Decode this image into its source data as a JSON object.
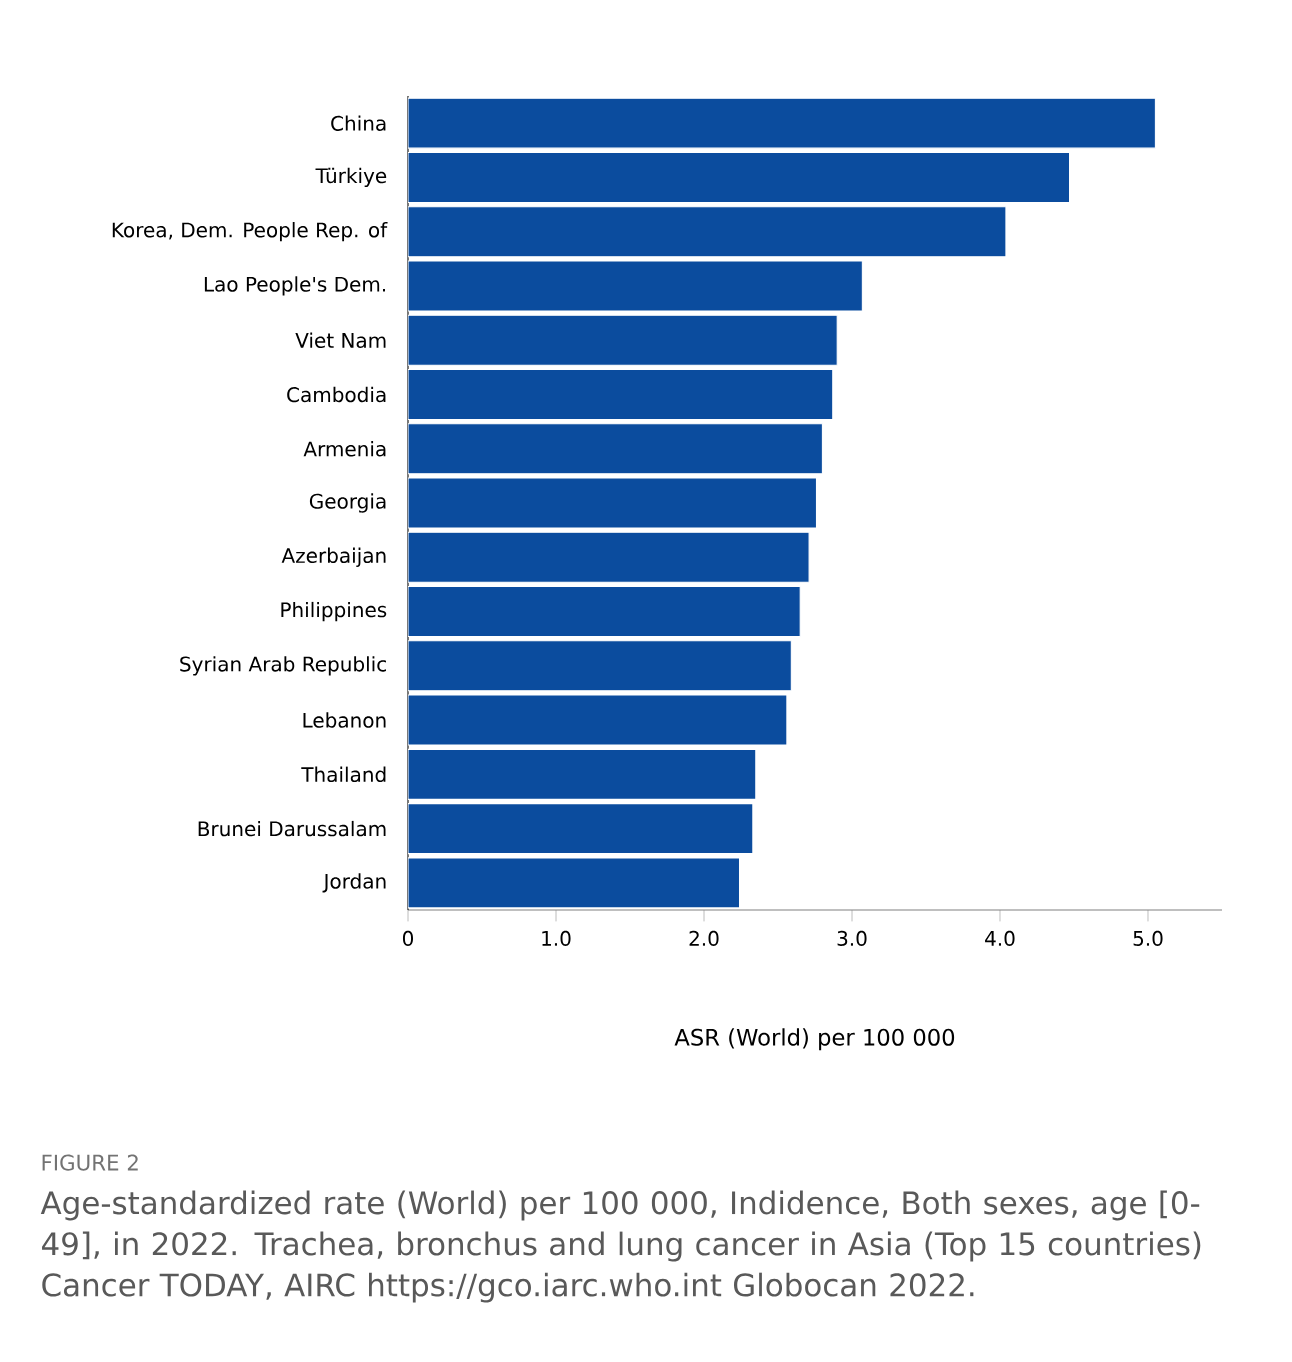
{
  "chart_data": {
    "type": "bar",
    "orientation": "horizontal",
    "xlabel": "ASR (World) per 100 000",
    "categories": [
      "China",
      "Türkiye",
      "Korea, Dem. People Rep. of",
      "Lao People's Dem.",
      "Viet Nam",
      "Cambodia",
      "Armenia",
      "Georgia",
      "Azerbaijan",
      "Philippines",
      "Syrian Arab Republic",
      "Lebanon",
      "Thailand",
      "Brunei Darussalam",
      "Jordan"
    ],
    "values": [
      5.05,
      4.47,
      4.04,
      3.07,
      2.9,
      2.87,
      2.8,
      2.76,
      2.71,
      2.65,
      2.59,
      2.56,
      2.35,
      2.33,
      2.24
    ],
    "color": "#0b4c9e",
    "xlim": [
      0,
      5.5
    ],
    "xticks": [
      0,
      {
        "value": 1,
        "label": "1.0"
      },
      {
        "value": 2,
        "label": "2.0"
      },
      {
        "value": 3,
        "label": "3.0"
      },
      {
        "value": 4,
        "label": "4.0"
      },
      {
        "value": 5,
        "label": "5.0"
      }
    ],
    "annotations": [
      "FIGURE 2",
      "Age-standardized rate (World) per 100 000, Indidence, Both sexes, age [0-49], in 2022. Trachea, bronchus and lung cancer in Asia (Top 15 countries) Cancer TODAY, AIRC https://gco.iarc.who.int Globocan 2022."
    ]
  }
}
